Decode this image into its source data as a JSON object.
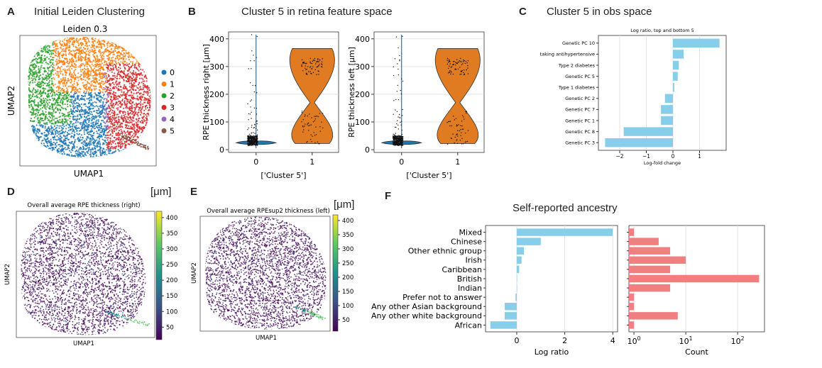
{
  "panels": {
    "A": {
      "letter": "A",
      "title": "Initial Leiden Clustering"
    },
    "B": {
      "letter": "B",
      "title": "Cluster 5 in retina feature space"
    },
    "C": {
      "letter": "C",
      "title": "Cluster 5 in obs space"
    },
    "D": {
      "letter": "D",
      "unit": "[μm]"
    },
    "E": {
      "letter": "E",
      "unit": "[μm]"
    },
    "F": {
      "letter": "F",
      "title": "Self-reported ancestry"
    }
  },
  "colors": {
    "leiden": [
      "#1f77b4",
      "#ff7f0e",
      "#2ca02c",
      "#d62728",
      "#9467bd",
      "#8c564b"
    ],
    "violin_blue": "#1f77b4",
    "violin_orange": "#e07b22",
    "bar_blue": "#87ceeb",
    "bar_red": "#f08080",
    "viridis": [
      "#440154",
      "#3b528b",
      "#21918c",
      "#5ec962",
      "#fde725"
    ]
  },
  "chart_data": [
    {
      "id": "A",
      "type": "scatter",
      "title": "Leiden 0.3",
      "xlabel": "UMAP1",
      "ylabel": "UMAP2",
      "legend": [
        "0",
        "1",
        "2",
        "3",
        "4",
        "5"
      ],
      "legend_placement": "right"
    },
    {
      "id": "B1",
      "type": "violin",
      "ylabel": "RPE thickness right [μm]",
      "xlabel": "['Cluster 5']",
      "categories": [
        "0",
        "1"
      ],
      "ylim": [
        -10,
        425
      ],
      "yticks": [
        0,
        100,
        200,
        300,
        400
      ],
      "grid": true
    },
    {
      "id": "B2",
      "type": "violin",
      "ylabel": "RPE thickness left [μm]",
      "xlabel": "['Cluster 5']",
      "categories": [
        "0",
        "1"
      ],
      "ylim": [
        -10,
        425
      ],
      "yticks": [
        0,
        100,
        200,
        300,
        400
      ],
      "grid": true
    },
    {
      "id": "C",
      "type": "bar",
      "orientation": "horizontal",
      "title": "Log ratio, top and bottom 5",
      "xlabel": "Log-fold change",
      "categories": [
        "Genetic PC 10",
        "taking antihypertensive",
        "Type 2 diabetes",
        "Genetic PC 5",
        "Type 1 diabetes",
        "Genetic PC 2",
        "Genetic PC 7",
        "Genetic PC 1",
        "Genetic PC 8",
        "Genetic PC 3"
      ],
      "values": [
        1.75,
        0.4,
        0.22,
        0.18,
        0.05,
        -0.3,
        -0.45,
        -0.45,
        -1.85,
        -2.55
      ],
      "xlim": [
        -2.8,
        2.0
      ],
      "xticks": [
        -2,
        -1,
        0,
        1
      ],
      "xticklabels": [
        "−2",
        "−1",
        "0",
        "1"
      ],
      "grid": true
    },
    {
      "id": "D",
      "type": "scatter",
      "title": "Overall average RPE thickness (right)",
      "xlabel": "UMAP1",
      "ylabel": "UMAP2",
      "colorbar_ticks": [
        50,
        100,
        150,
        200,
        250,
        300,
        350,
        400
      ],
      "colorbar_range": [
        10,
        420
      ]
    },
    {
      "id": "E",
      "type": "scatter",
      "title": "Overall average RPEsup2 thickness (left)",
      "xlabel": "UMAP1",
      "ylabel": "UMAP2",
      "colorbar_ticks": [
        50,
        100,
        150,
        200,
        250,
        300,
        350,
        400
      ],
      "colorbar_range": [
        10,
        420
      ]
    },
    {
      "id": "F1",
      "type": "bar",
      "orientation": "horizontal",
      "xlabel": "Log ratio",
      "categories": [
        "Mixed",
        "Chinese",
        "Other ethnic group",
        "Irish",
        "Caribbean",
        "British",
        "Indian",
        "Prefer not to answer",
        "Any other Asian background",
        "Any other white background",
        "African"
      ],
      "values": [
        4.0,
        1.0,
        0.3,
        0.2,
        0.1,
        0.0,
        0.0,
        -0.05,
        -0.5,
        -0.5,
        -1.1
      ],
      "xlim": [
        -1.3,
        4.2
      ],
      "xticks": [
        0,
        2,
        4
      ],
      "grid": true
    },
    {
      "id": "F2",
      "type": "bar",
      "orientation": "horizontal",
      "xlabel": "Count",
      "xscale": "log",
      "categories": [
        "Mixed",
        "Chinese",
        "Other ethnic group",
        "Irish",
        "Caribbean",
        "British",
        "Indian",
        "Prefer not to answer",
        "Any other Asian background",
        "Any other white background",
        "African"
      ],
      "values": [
        1,
        3,
        5,
        10,
        5,
        260,
        5,
        1,
        1,
        7,
        1
      ],
      "xlim": [
        0.8,
        330
      ],
      "xticks": [
        1,
        10,
        100
      ],
      "xticklabels": [
        [
          "10",
          "0"
        ],
        [
          "10",
          "1"
        ],
        [
          "10",
          "2"
        ]
      ],
      "grid": true
    }
  ]
}
